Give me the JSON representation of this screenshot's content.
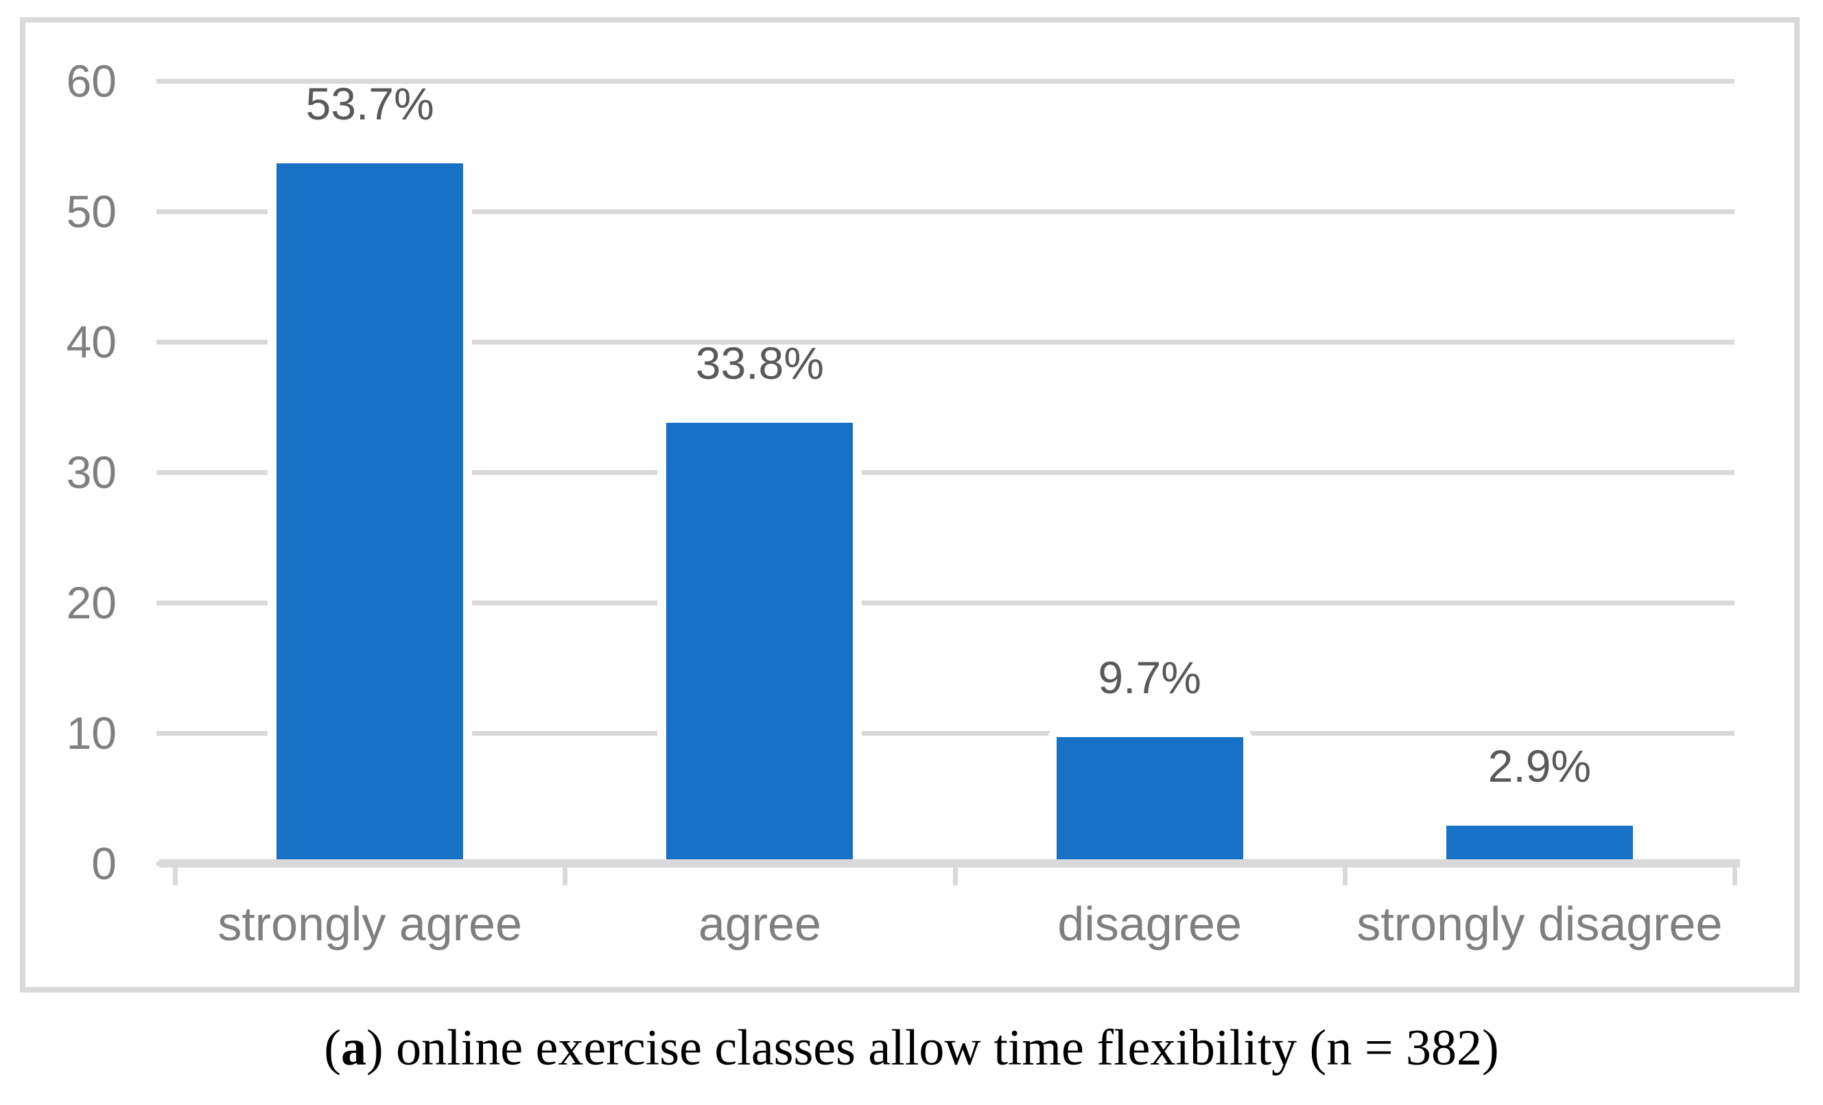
{
  "figure": {
    "caption": {
      "open_paren": "(",
      "panel_label": "a",
      "rest": ") online exercise classes allow time flexibility (n = 382)"
    }
  },
  "chart_data": {
    "type": "bar",
    "title": "",
    "xlabel": "",
    "ylabel": "",
    "categories": [
      "strongly agree",
      "agree",
      "disagree",
      "strongly disagree"
    ],
    "values": [
      53.7,
      33.8,
      9.7,
      2.9
    ],
    "data_labels": [
      "53.7%",
      "33.8%",
      "9.7%",
      "2.9%"
    ],
    "y_ticks": [
      0,
      10,
      20,
      30,
      40,
      50,
      60
    ],
    "ylim": [
      0,
      60
    ],
    "grid": true,
    "legend_position": "none",
    "colors": {
      "bar": "#1772C6",
      "gridline": "#D9D9D9",
      "axis": "#D9D9D9",
      "frame": "#D9D9D9",
      "data_label": "#595959",
      "tick_label": "#7F7F7F",
      "category_label": "#7F7F7F",
      "caption_text": "#000000"
    }
  }
}
